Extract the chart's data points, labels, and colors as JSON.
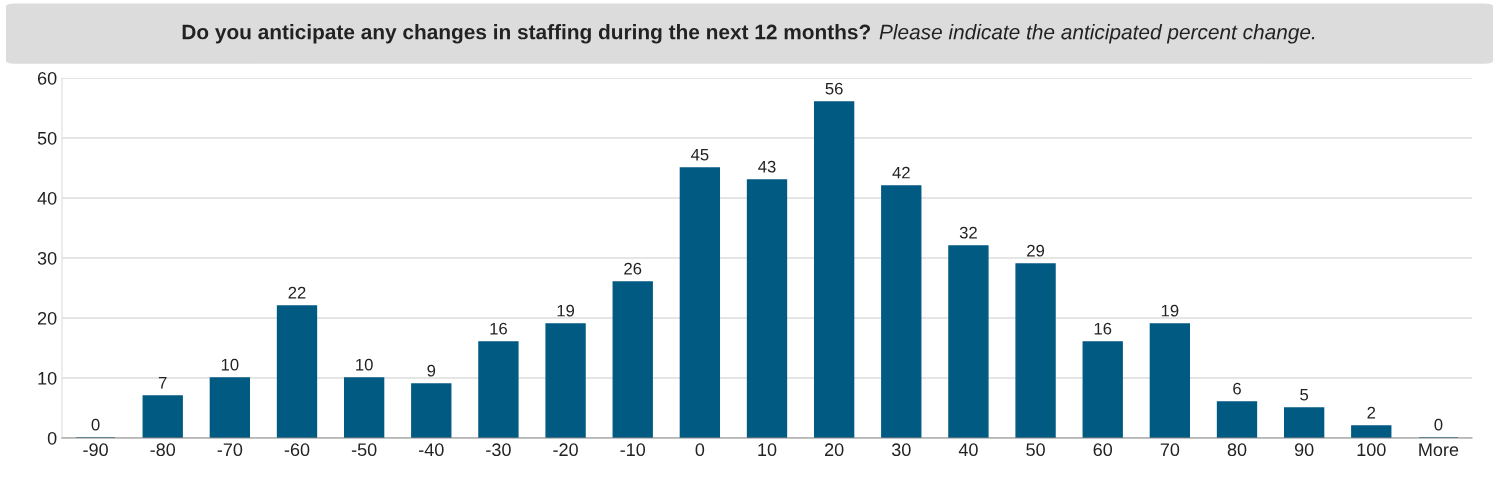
{
  "chart_data": {
    "type": "bar",
    "title": "Do you anticipate any changes in staffing during the next 12 months?",
    "subtitle": "Please indicate the anticipated percent change.",
    "categories": [
      "-90",
      "-80",
      "-70",
      "-60",
      "-50",
      "-40",
      "-30",
      "-20",
      "-10",
      "0",
      "10",
      "20",
      "30",
      "40",
      "50",
      "60",
      "70",
      "80",
      "90",
      "100",
      "More"
    ],
    "values": [
      0,
      7,
      10,
      22,
      10,
      9,
      16,
      19,
      26,
      45,
      43,
      56,
      42,
      32,
      29,
      16,
      19,
      6,
      5,
      2,
      0
    ],
    "color": "#005a82",
    "ylim": [
      0,
      60
    ],
    "yticks": [
      0,
      10,
      20,
      30,
      40,
      50,
      60
    ],
    "grid": "y",
    "data_labels": true
  }
}
